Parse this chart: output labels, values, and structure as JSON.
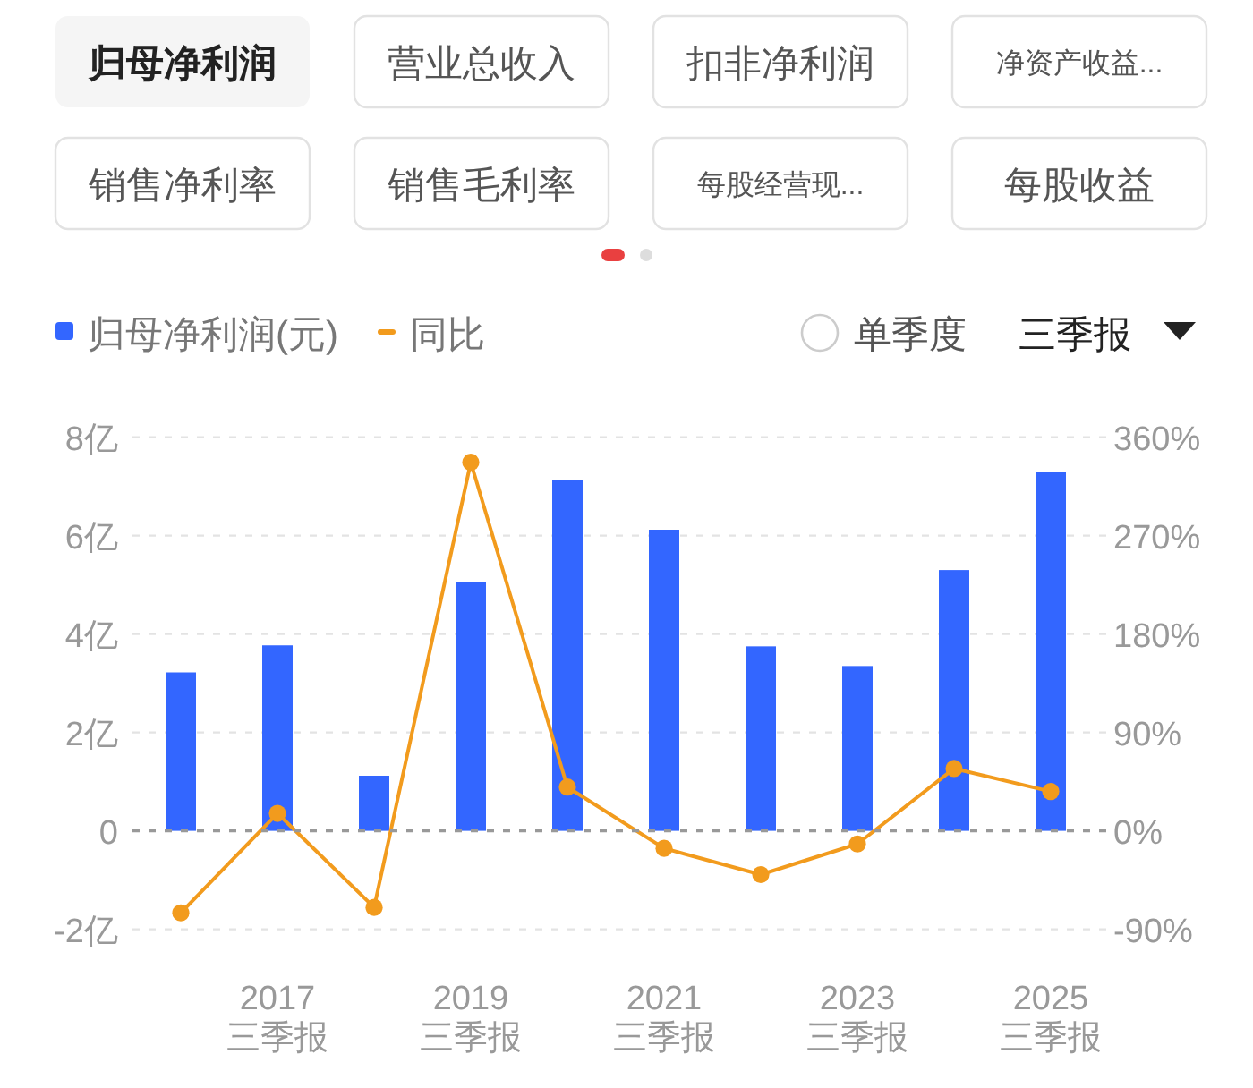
{
  "chart_data": {
    "type": "bar",
    "annotations": [
      "归母净利润",
      "营业总收入",
      "扣非净利润",
      "净资产收益...",
      "销售净利率",
      "销售毛利率",
      "每股经营现...",
      "每股收益",
      "单季度",
      "三季报"
    ],
    "categories": [
      null,
      "2017\n三季报",
      null,
      "2019\n三季报",
      null,
      "2021\n三季报",
      null,
      "2023\n三季报",
      null,
      "2025\n三季报"
    ],
    "series": [
      {
        "name": "归母净利润(元)",
        "color": "#3366ff",
        "values": [
          3.22,
          3.77,
          1.12,
          5.05,
          7.13,
          6.12,
          3.75,
          3.35,
          5.3,
          7.29
        ]
      },
      {
        "name": "同比",
        "type": "line",
        "axis": "y2",
        "color": "#f29b1d",
        "marker": "circle",
        "values": [
          -75,
          16,
          -70,
          337,
          40,
          -16,
          -40,
          -12,
          57,
          36
        ]
      }
    ],
    "ylim": [
      -2,
      8
    ],
    "yticks": [
      {
        "value": -2,
        "label": "-2亿"
      },
      0,
      {
        "value": 2,
        "label": "2亿"
      },
      {
        "value": 4,
        "label": "4亿"
      },
      {
        "value": 6,
        "label": "6亿"
      },
      {
        "value": 8,
        "label": "8亿"
      }
    ],
    "y2lim": [
      -90,
      360
    ],
    "y2ticks": [
      {
        "value": -90,
        "label": "-90%"
      },
      {
        "value": 0,
        "label": "0%"
      },
      {
        "value": 90,
        "label": "90%"
      },
      {
        "value": 180,
        "label": "180%"
      },
      {
        "value": 270,
        "label": "270%"
      },
      {
        "value": 360,
        "label": "360%"
      }
    ],
    "ref_lines": [
      {
        "axis": "y",
        "value": 0,
        "color": "#999999",
        "line_style": "dashed"
      }
    ],
    "grid": "y",
    "legend": "top left"
  }
}
